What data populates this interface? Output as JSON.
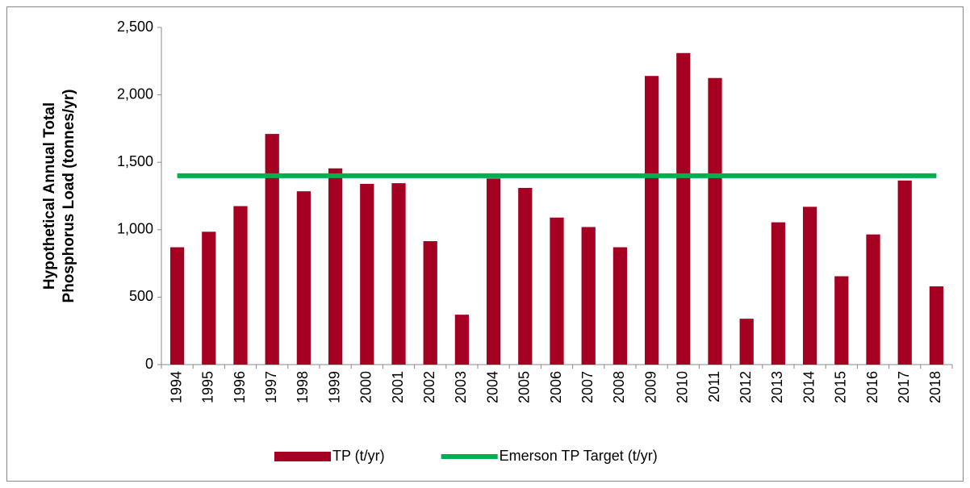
{
  "chart_data": {
    "type": "bar",
    "y_label": [
      "Hypothetical Annual Total",
      "Phosphorus Load (tonnes/yr)"
    ],
    "categories": [
      "1994",
      "1995",
      "1996",
      "1997",
      "1998",
      "1999",
      "2000",
      "2001",
      "2002",
      "2003",
      "2004",
      "2005",
      "2006",
      "2007",
      "2008",
      "2009",
      "2010",
      "2011",
      "2012",
      "2013",
      "2014",
      "2015",
      "2016",
      "2017",
      "2018"
    ],
    "series": [
      {
        "name": "TP (t/yr)",
        "type": "bar",
        "color": "#a50021",
        "values": [
          870,
          985,
          1175,
          1710,
          1285,
          1455,
          1340,
          1345,
          915,
          370,
          1380,
          1310,
          1090,
          1020,
          870,
          2140,
          2310,
          2125,
          340,
          1055,
          1170,
          655,
          965,
          1365,
          580
        ]
      },
      {
        "name": "Emerson TP Target (t/yr)",
        "type": "line",
        "color": "#00b050",
        "values": [
          1400,
          1400,
          1400,
          1400,
          1400,
          1400,
          1400,
          1400,
          1400,
          1400,
          1400,
          1400,
          1400,
          1400,
          1400,
          1400,
          1400,
          1400,
          1400,
          1400,
          1400,
          1400,
          1400,
          1400,
          1400
        ]
      }
    ],
    "ylim": [
      0,
      2500
    ],
    "yticks": [
      0,
      500,
      {
        "value": 1000,
        "label": "1,000"
      },
      {
        "value": 1500,
        "label": "1,500"
      },
      {
        "value": 2000,
        "label": "2,000"
      },
      {
        "value": 2500,
        "label": "2,500"
      }
    ],
    "grid": false,
    "legend": "bottom"
  }
}
